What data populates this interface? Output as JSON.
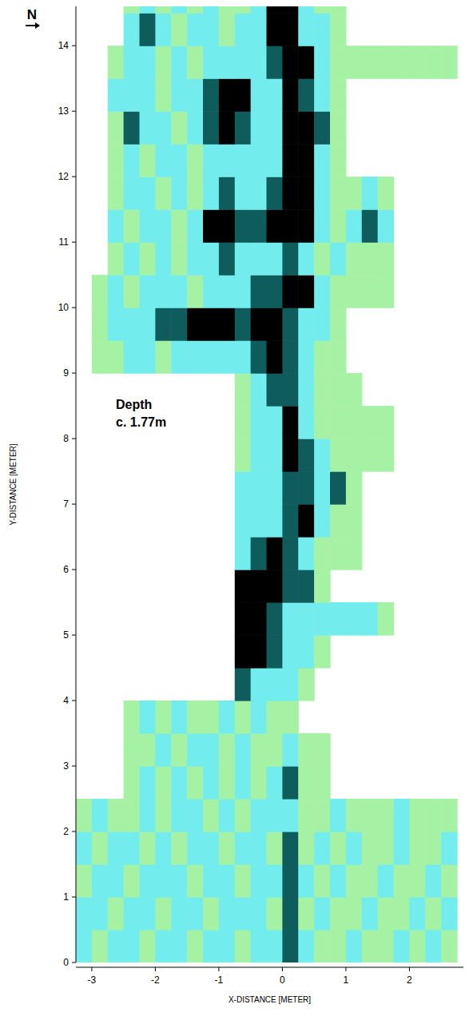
{
  "chart_data": {
    "type": "heatmap",
    "compass": "N",
    "annotations": [
      "Depth",
      "c. 1.77m"
    ],
    "x_label": "X-DISTANCE [METER]",
    "y_label": "Y-DISTANCE [METER]",
    "xlim": [
      -3.25,
      2.85
    ],
    "ylim": [
      0,
      14.6
    ],
    "xticks": [
      -3,
      -2,
      -1,
      0,
      1,
      2
    ],
    "yticks": [
      0,
      1,
      2,
      3,
      4,
      5,
      6,
      7,
      8,
      9,
      10,
      11,
      12,
      13,
      14
    ],
    "levels": [
      1,
      2,
      3,
      4
    ],
    "colors": [
      "#a6f2a4",
      "#72ecec",
      "#0f5c5c",
      "#000000"
    ],
    "x": [
      -3.125,
      -2.875,
      -2.625,
      -2.375,
      -2.125,
      -1.875,
      -1.625,
      -1.375,
      -1.125,
      -0.875,
      -0.625,
      -0.375,
      -0.125,
      0.125,
      0.375,
      0.625,
      0.875,
      1.125,
      1.375,
      1.625,
      1.875,
      2.125,
      2.375,
      2.625
    ],
    "y": [
      0.25,
      0.75,
      1.25,
      1.75,
      2.25,
      2.75,
      3.25,
      3.75,
      4.25,
      4.75,
      5.25,
      5.75,
      6.25,
      6.75,
      7.25,
      7.75,
      8.25,
      8.75,
      9.25,
      9.75,
      10.25,
      10.75,
      11.25,
      11.75,
      12.25,
      12.75,
      13.25,
      13.75,
      14.25,
      14.75
    ],
    "values": [
      [
        2,
        1,
        2,
        2,
        1,
        2,
        2,
        1,
        2,
        2,
        1,
        2,
        2,
        3,
        2,
        1,
        1,
        2,
        1,
        1,
        2,
        1,
        2,
        1
      ],
      [
        2,
        2,
        1,
        2,
        2,
        1,
        2,
        2,
        1,
        2,
        2,
        2,
        1,
        3,
        1,
        2,
        1,
        1,
        2,
        1,
        1,
        2,
        1,
        2
      ],
      [
        1,
        2,
        2,
        1,
        2,
        2,
        2,
        1,
        2,
        2,
        1,
        2,
        2,
        3,
        2,
        1,
        2,
        1,
        1,
        2,
        1,
        1,
        2,
        1
      ],
      [
        2,
        1,
        2,
        2,
        1,
        2,
        1,
        2,
        2,
        1,
        2,
        2,
        1,
        3,
        1,
        2,
        1,
        2,
        1,
        1,
        2,
        1,
        1,
        2
      ],
      [
        1,
        2,
        1,
        1,
        2,
        1,
        2,
        2,
        1,
        2,
        1,
        2,
        2,
        2,
        1,
        1,
        2,
        1,
        1,
        1,
        2,
        1,
        1,
        1
      ],
      [
        null,
        null,
        null,
        1,
        2,
        1,
        2,
        1,
        2,
        1,
        2,
        1,
        2,
        3,
        1,
        1,
        null,
        null,
        null,
        null,
        null,
        null,
        null,
        null
      ],
      [
        null,
        null,
        null,
        1,
        1,
        2,
        1,
        2,
        2,
        1,
        2,
        1,
        1,
        2,
        1,
        1,
        null,
        null,
        null,
        null,
        null,
        null,
        null,
        null
      ],
      [
        null,
        null,
        null,
        1,
        2,
        1,
        2,
        1,
        1,
        2,
        1,
        2,
        1,
        1,
        null,
        null,
        null,
        null,
        null,
        null,
        null,
        null,
        null,
        null
      ],
      [
        null,
        null,
        null,
        null,
        null,
        null,
        null,
        null,
        null,
        null,
        3,
        2,
        2,
        2,
        1,
        null,
        null,
        null,
        null,
        null,
        null,
        null,
        null,
        null
      ],
      [
        null,
        null,
        null,
        null,
        null,
        null,
        null,
        null,
        null,
        null,
        4,
        4,
        3,
        2,
        2,
        1,
        null,
        null,
        null,
        null,
        null,
        null,
        null,
        null
      ],
      [
        null,
        null,
        null,
        null,
        null,
        null,
        null,
        null,
        null,
        null,
        4,
        4,
        3,
        2,
        2,
        2,
        2,
        2,
        2,
        1,
        null,
        null,
        null,
        null
      ],
      [
        null,
        null,
        null,
        null,
        null,
        null,
        null,
        null,
        null,
        null,
        4,
        4,
        4,
        3,
        3,
        1,
        null,
        null,
        null,
        null,
        null,
        null,
        null,
        null
      ],
      [
        null,
        null,
        null,
        null,
        null,
        null,
        null,
        null,
        null,
        null,
        2,
        3,
        4,
        3,
        2,
        1,
        1,
        1,
        null,
        null,
        null,
        null,
        null,
        null
      ],
      [
        null,
        null,
        null,
        null,
        null,
        null,
        null,
        null,
        null,
        null,
        2,
        2,
        2,
        3,
        4,
        2,
        1,
        1,
        null,
        null,
        null,
        null,
        null,
        null
      ],
      [
        null,
        null,
        null,
        null,
        null,
        null,
        null,
        null,
        null,
        null,
        2,
        2,
        2,
        3,
        3,
        2,
        3,
        1,
        null,
        null,
        null,
        null,
        null,
        null
      ],
      [
        null,
        null,
        null,
        null,
        null,
        null,
        null,
        null,
        null,
        null,
        1,
        2,
        2,
        4,
        3,
        2,
        1,
        1,
        1,
        1,
        null,
        null,
        null,
        null
      ],
      [
        null,
        null,
        null,
        null,
        null,
        null,
        null,
        null,
        null,
        null,
        1,
        2,
        2,
        4,
        2,
        1,
        1,
        1,
        1,
        1,
        null,
        null,
        null,
        null
      ],
      [
        null,
        null,
        null,
        null,
        null,
        null,
        null,
        null,
        null,
        null,
        1,
        2,
        3,
        3,
        2,
        1,
        1,
        1,
        null,
        null,
        null,
        null,
        null,
        null
      ],
      [
        null,
        1,
        1,
        2,
        2,
        1,
        2,
        2,
        2,
        2,
        2,
        3,
        4,
        3,
        2,
        1,
        1,
        null,
        null,
        null,
        null,
        null,
        null,
        null
      ],
      [
        null,
        1,
        2,
        2,
        2,
        3,
        3,
        4,
        4,
        4,
        3,
        4,
        4,
        3,
        2,
        2,
        1,
        null,
        null,
        null,
        null,
        null,
        null,
        null
      ],
      [
        null,
        1,
        2,
        1,
        2,
        2,
        2,
        1,
        2,
        2,
        2,
        3,
        3,
        4,
        4,
        2,
        1,
        1,
        1,
        1,
        null,
        null,
        null,
        null
      ],
      [
        null,
        null,
        1,
        2,
        1,
        2,
        1,
        2,
        2,
        3,
        2,
        2,
        2,
        3,
        2,
        1,
        2,
        1,
        1,
        1,
        null,
        null,
        null,
        null
      ],
      [
        null,
        null,
        2,
        1,
        2,
        2,
        1,
        2,
        4,
        4,
        3,
        3,
        4,
        4,
        4,
        2,
        1,
        2,
        3,
        2,
        null,
        null,
        null,
        null
      ],
      [
        null,
        null,
        1,
        2,
        2,
        1,
        2,
        1,
        2,
        3,
        2,
        2,
        3,
        4,
        4,
        2,
        1,
        1,
        2,
        1,
        null,
        null,
        null,
        null
      ],
      [
        null,
        null,
        1,
        2,
        1,
        2,
        2,
        1,
        2,
        2,
        2,
        2,
        2,
        4,
        4,
        2,
        1,
        null,
        null,
        null,
        null,
        null,
        null,
        null
      ],
      [
        null,
        null,
        1,
        3,
        2,
        2,
        1,
        2,
        3,
        4,
        3,
        2,
        2,
        4,
        4,
        3,
        1,
        null,
        null,
        null,
        null,
        null,
        null,
        null
      ],
      [
        null,
        null,
        2,
        2,
        2,
        1,
        2,
        2,
        3,
        4,
        4,
        2,
        2,
        4,
        3,
        2,
        1,
        null,
        null,
        null,
        null,
        null,
        null,
        null
      ],
      [
        null,
        null,
        1,
        2,
        2,
        1,
        2,
        1,
        2,
        2,
        2,
        2,
        3,
        4,
        4,
        2,
        1,
        1,
        1,
        1,
        1,
        1,
        1,
        1
      ],
      [
        null,
        null,
        null,
        2,
        3,
        2,
        1,
        2,
        2,
        1,
        2,
        2,
        4,
        4,
        2,
        2,
        1,
        null,
        null,
        null,
        null,
        null,
        null,
        null
      ],
      [
        null,
        null,
        null,
        1,
        2,
        1,
        2,
        1,
        2,
        1,
        1,
        2,
        4,
        4,
        2,
        1,
        1,
        null,
        null,
        null,
        null,
        null,
        null,
        null
      ]
    ]
  }
}
